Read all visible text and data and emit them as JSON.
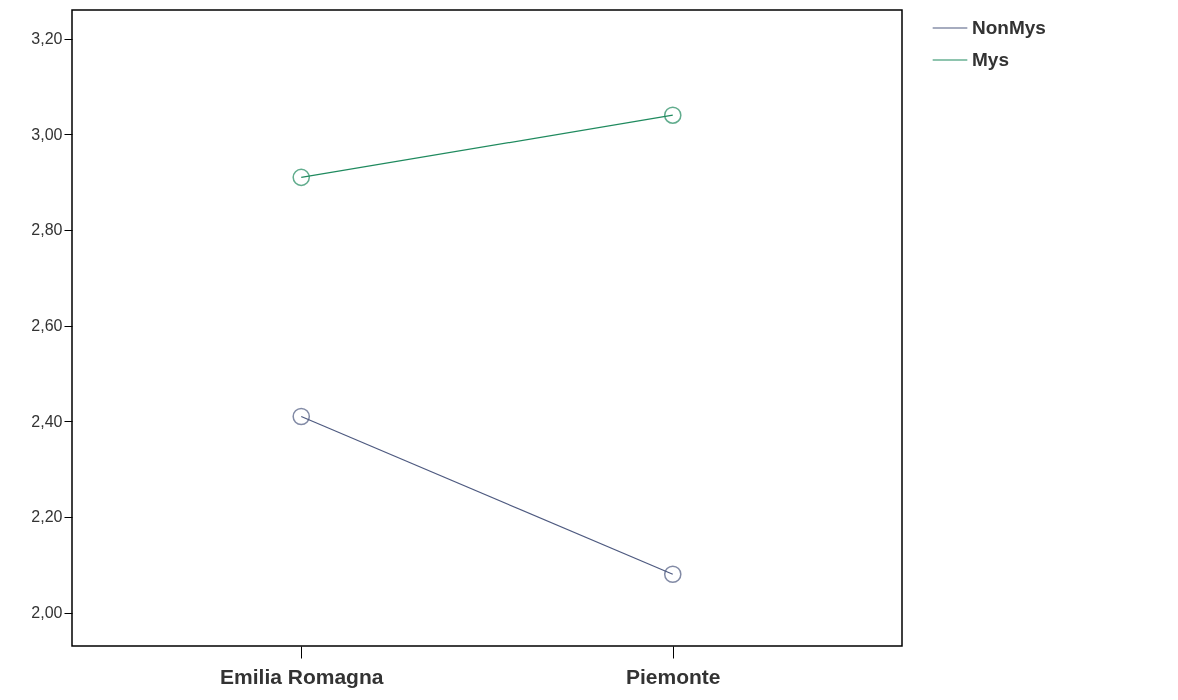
{
  "chart_data": {
    "type": "line",
    "categories": [
      "Emilia Romagna",
      "Piemonte"
    ],
    "series": [
      {
        "name": "NonMys",
        "color": "#4e5a80",
        "values": [
          2.41,
          2.08
        ]
      },
      {
        "name": "Mys",
        "color": "#1f8a5e",
        "values": [
          2.91,
          3.04
        ]
      }
    ],
    "ylim": [
      1.93,
      3.26
    ],
    "yticks": [
      {
        "value": 2.0,
        "label": "2,00"
      },
      {
        "value": 2.2,
        "label": "2,20"
      },
      {
        "value": 2.4,
        "label": "2,40"
      },
      {
        "value": 2.6,
        "label": "2,60"
      },
      {
        "value": 2.8,
        "label": "2,80"
      },
      {
        "value": 3.0,
        "label": "3,00"
      },
      {
        "value": 3.2,
        "label": "3,20"
      }
    ],
    "marker": "circle",
    "line_style": "solid",
    "grid": false,
    "legend": "top right"
  }
}
